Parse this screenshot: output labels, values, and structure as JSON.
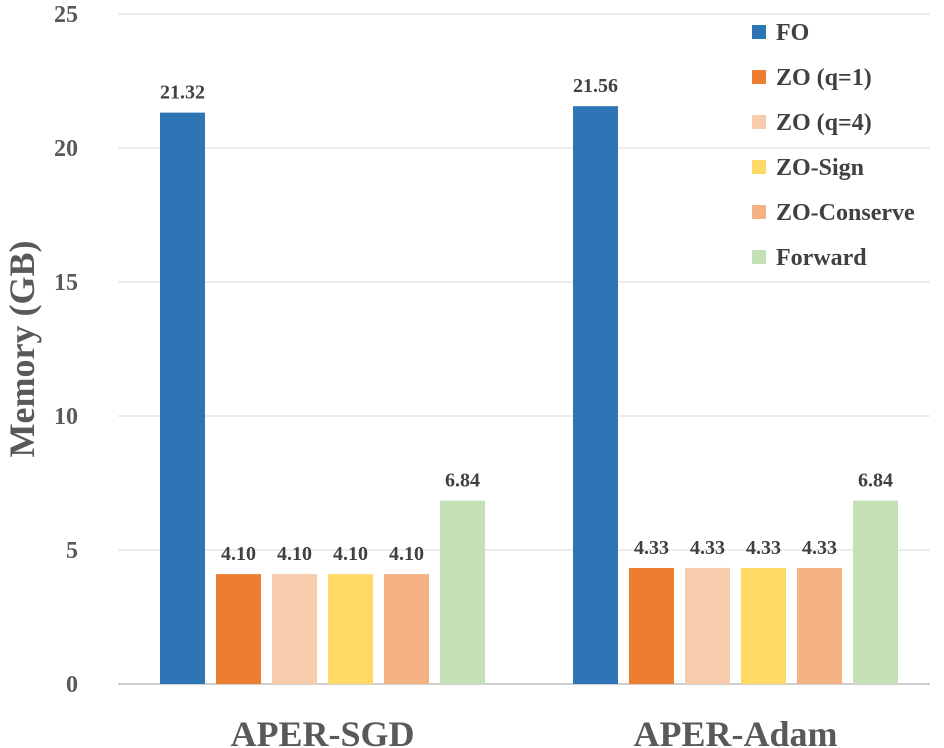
{
  "chart_data": {
    "type": "bar",
    "title": "",
    "xlabel": "",
    "ylabel": "Memory (GB)",
    "ylim": [
      0,
      25
    ],
    "yticks": [
      0,
      5,
      10,
      15,
      20,
      25
    ],
    "grid": true,
    "legend_position": "top-right",
    "categories": [
      "APER-SGD",
      "APER-Adam"
    ],
    "series": [
      {
        "name": "FO",
        "color": "#2E75B6",
        "values": [
          21.32,
          21.56
        ],
        "labels": [
          "21.32",
          "21.56"
        ]
      },
      {
        "name": "ZO (q=1)",
        "color": "#ED7D31",
        "values": [
          4.1,
          4.33
        ],
        "labels": [
          "4.10",
          "4.33"
        ]
      },
      {
        "name": "ZO (q=4)",
        "color": "#F8CBAD",
        "values": [
          4.1,
          4.33
        ],
        "labels": [
          "4.10",
          "4.33"
        ]
      },
      {
        "name": "ZO-Sign",
        "color": "#FFD966",
        "values": [
          4.1,
          4.33
        ],
        "labels": [
          "4.10",
          "4.33"
        ]
      },
      {
        "name": "ZO-Conserve",
        "color": "#F4B183",
        "values": [
          4.1,
          4.33
        ],
        "labels": [
          "4.10",
          "4.33"
        ]
      },
      {
        "name": "Forward",
        "color": "#C5E0B4",
        "values": [
          6.84,
          6.84
        ],
        "labels": [
          "6.84",
          "6.84"
        ]
      }
    ]
  }
}
